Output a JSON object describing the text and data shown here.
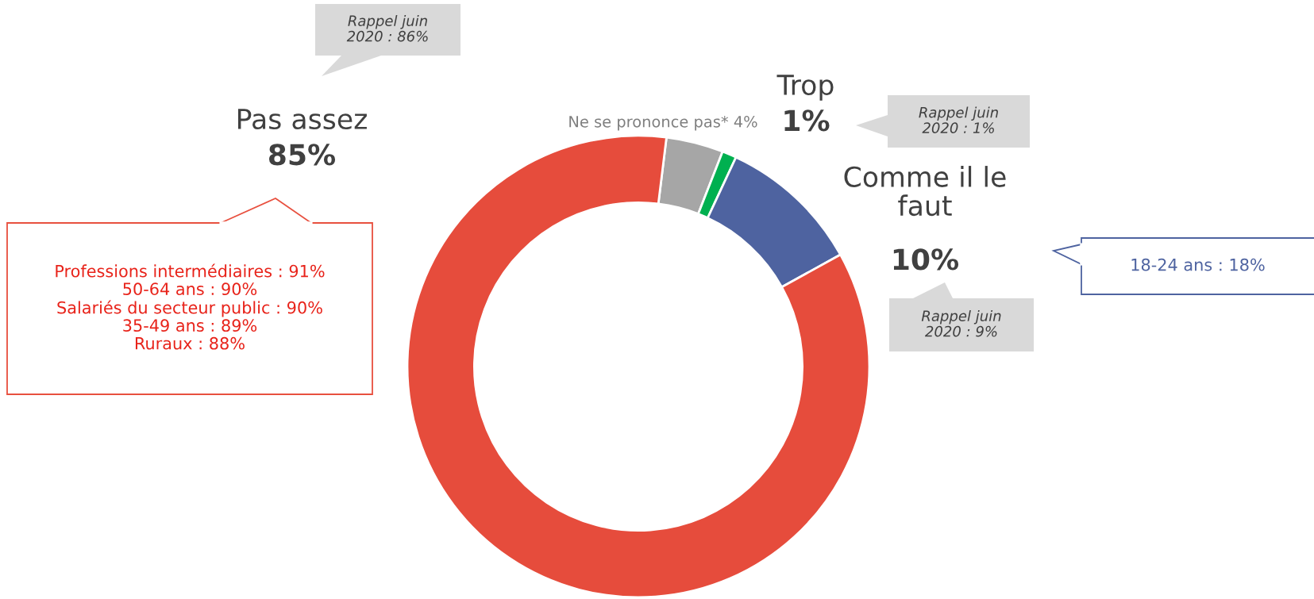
{
  "chart_data": {
    "type": "donut",
    "categories": [
      "Ne se prononce pas*",
      "Trop",
      "Comme il le faut",
      "Pas assez"
    ],
    "values": [
      4,
      1,
      10,
      85
    ],
    "value_labels": [
      "4%",
      "1%",
      "10%",
      "85%"
    ],
    "colors": [
      "#a6a6a6",
      "#00b050",
      "#4e63a0",
      "#e64c3c"
    ],
    "annotations": [
      "Rappel juin 2020 : 86%",
      "Rappel juin 2020 : 1%",
      "Rappel juin 2020 : 9%",
      "Professions intermédiaires : 91%\n50-64 ans : 90%\nSalariés du secteur public : 90%\n35-49 ans : 89%\nRuraux : 88%",
      "18-24 ans : 18%"
    ]
  }
}
